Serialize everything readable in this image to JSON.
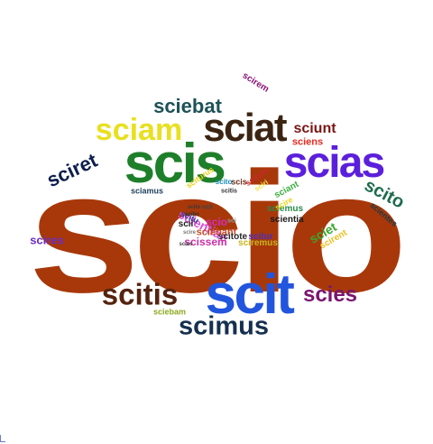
{
  "word_cloud": {
    "words": [
      {
        "id": "scio",
        "text": "scio",
        "color": "#a8380a"
      },
      {
        "id": "scit",
        "text": "scit",
        "color": "#2255dd"
      },
      {
        "id": "scis",
        "text": "scis",
        "color": "#1e7f2a"
      },
      {
        "id": "scias",
        "text": "scias",
        "color": "#5b1fdc"
      },
      {
        "id": "sciat",
        "text": "sciat",
        "color": "#3b2412"
      },
      {
        "id": "sciam",
        "text": "sciam",
        "color": "#e8e020"
      },
      {
        "id": "scitis",
        "text": "scitis",
        "color": "#55230f"
      },
      {
        "id": "scimus",
        "text": "scimus",
        "color": "#15304f"
      },
      {
        "id": "scies",
        "text": "scies",
        "color": "#7a1570"
      },
      {
        "id": "sciebat",
        "text": "sciebat",
        "color": "#1d5257"
      },
      {
        "id": "sciret",
        "text": "sciret",
        "color": "#0d1e4d"
      },
      {
        "id": "scito",
        "text": "scito",
        "color": "#1d6b4c"
      },
      {
        "id": "sciunt",
        "text": "sciunt",
        "color": "#7a1512"
      },
      {
        "id": "sciens",
        "text": "sciens",
        "color": "#e8281e"
      },
      {
        "id": "scirem",
        "text": "scirem",
        "color": "#8a1275"
      },
      {
        "id": "scires",
        "text": "scires",
        "color": "#6a2ec8"
      },
      {
        "id": "sciet",
        "text": "sciet",
        "color": "#3ca82c"
      },
      {
        "id": "scirent",
        "text": "scirent",
        "color": "#e8c020"
      },
      {
        "id": "scientes",
        "text": "scientes",
        "color": "#1d3a46"
      },
      {
        "id": "sciant",
        "text": "sciant",
        "color": "#3cb040"
      },
      {
        "id": "scientia",
        "text": "scientia",
        "color": "#1a1a1a"
      },
      {
        "id": "sciamus",
        "text": "sciamus",
        "color": "#1d3f5a"
      },
      {
        "id": "sciebam",
        "text": "sciebam",
        "color": "#8ca81e"
      },
      {
        "id": "sciturus",
        "text": "sciturus",
        "color": "#e8d41e"
      },
      {
        "id": "scitum",
        "text": "scitum",
        "color": "#c8282a"
      },
      {
        "id": "scitur",
        "text": "scitur",
        "color": "#4a2ec0"
      },
      {
        "id": "sciemus",
        "text": "sciemus",
        "color": "#2a8a4a"
      },
      {
        "id": "scitis-small",
        "text": "scitis",
        "color": "#333333"
      },
      {
        "id": "scito-small",
        "text": "scito",
        "color": "#1a8ab8"
      },
      {
        "id": "sciri",
        "text": "sciri",
        "color": "#f0e84a"
      },
      {
        "id": "scire",
        "text": "scire",
        "color": "#e8d41e"
      },
      {
        "id": "scis-small",
        "text": "scis",
        "color": "#6a2e1a"
      },
      {
        "id": "scientiae",
        "text": "scientiae",
        "color": "#d84cd8"
      },
      {
        "id": "sciebant",
        "text": "sciebant",
        "color": "#c84a28"
      },
      {
        "id": "scitu",
        "text": "scitu",
        "color": "#3a3a8a"
      },
      {
        "id": "scii",
        "text": "scii",
        "color": "#222222"
      },
      {
        "id": "scissem",
        "text": "scissem",
        "color": "#cc30a8"
      },
      {
        "id": "scitote",
        "text": "scitote",
        "color": "#2a2a2a"
      },
      {
        "id": "sciremus",
        "text": "sciremus",
        "color": "#c8b41e"
      },
      {
        "id": "scio-small",
        "text": "scio",
        "color": "#d82abe"
      },
      {
        "id": "sci",
        "text": "sci",
        "color": "#999999"
      },
      {
        "id": "scit-small",
        "text": "scit",
        "color": "#444444"
      },
      {
        "id": "scito-tiny",
        "text": "scito",
        "color": "#3a3a3a"
      },
      {
        "id": "scire-tiny",
        "text": "scire",
        "color": "#777777"
      },
      {
        "id": "scies-tiny",
        "text": "scies",
        "color": "#444444"
      },
      {
        "id": "scibo",
        "text": "scibo",
        "color": "#333333"
      }
    ]
  }
}
